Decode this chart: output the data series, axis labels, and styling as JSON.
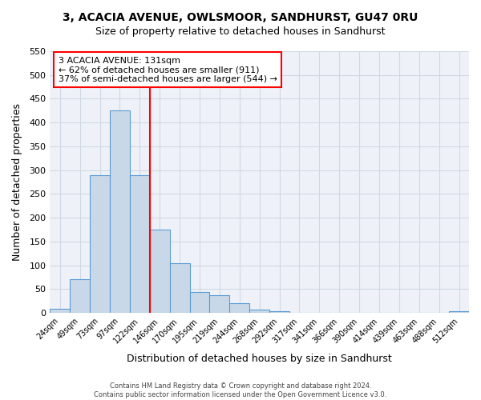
{
  "title": "3, ACACIA AVENUE, OWLSMOOR, SANDHURST, GU47 0RU",
  "subtitle": "Size of property relative to detached houses in Sandhurst",
  "xlabel": "Distribution of detached houses by size in Sandhurst",
  "ylabel": "Number of detached properties",
  "bin_labels": [
    "24sqm",
    "49sqm",
    "73sqm",
    "97sqm",
    "122sqm",
    "146sqm",
    "170sqm",
    "195sqm",
    "219sqm",
    "244sqm",
    "268sqm",
    "292sqm",
    "317sqm",
    "341sqm",
    "366sqm",
    "390sqm",
    "414sqm",
    "439sqm",
    "463sqm",
    "488sqm",
    "512sqm"
  ],
  "bar_values": [
    8,
    70,
    290,
    425,
    290,
    175,
    105,
    44,
    38,
    20,
    7,
    3,
    0,
    1,
    0,
    0,
    0,
    0,
    0,
    0,
    4
  ],
  "bar_color": "#c8d8e8",
  "bar_edge_color": "#5b9bd5",
  "grid_color": "#d0d8e4",
  "background_color": "#eef2f8",
  "vline_color": "red",
  "vline_x": 4.5,
  "annotation_title": "3 ACACIA AVENUE: 131sqm",
  "annotation_line1": "← 62% of detached houses are smaller (911)",
  "annotation_line2": "37% of semi-detached houses are larger (544) →",
  "annotation_box_color": "white",
  "annotation_box_edge": "red",
  "ylim": [
    0,
    550
  ],
  "yticks": [
    0,
    50,
    100,
    150,
    200,
    250,
    300,
    350,
    400,
    450,
    500,
    550
  ],
  "footer_line1": "Contains HM Land Registry data © Crown copyright and database right 2024.",
  "footer_line2": "Contains public sector information licensed under the Open Government Licence v3.0."
}
